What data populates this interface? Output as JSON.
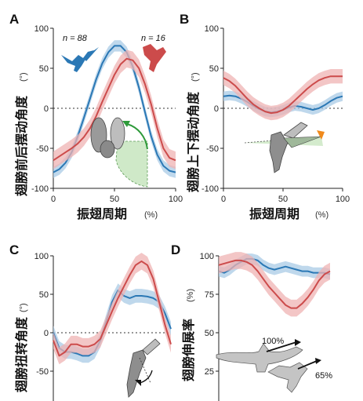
{
  "colors": {
    "blue": "#2b78b5",
    "blue_band": "#a9cbe6",
    "red": "#cc4b4b",
    "red_band": "#efb3b3"
  },
  "chart_data": [
    {
      "type": "line",
      "panel": "A",
      "ylabel": "翅膀前后摆动角度",
      "yunit": "(°)",
      "xlabel": "振翅周期",
      "xunit": "(%)",
      "xlim": [
        0,
        100
      ],
      "ylim": [
        -100,
        100
      ],
      "xticks": [
        0,
        50,
        100
      ],
      "yticks": [
        -100,
        -50,
        0,
        50,
        100
      ],
      "show_xlabel": true,
      "zero_line": true,
      "legend": [
        {
          "text": "n = 88",
          "color_key": "blue"
        },
        {
          "text": "n = 16",
          "color_key": "red"
        }
      ],
      "series": [
        {
          "color_key": "blue",
          "band": 7,
          "x": [
            0,
            5,
            10,
            15,
            20,
            25,
            30,
            35,
            40,
            45,
            50,
            55,
            60,
            65,
            70,
            75,
            80,
            85,
            90,
            95,
            100
          ],
          "y": [
            -80,
            -76,
            -68,
            -55,
            -35,
            -12,
            12,
            36,
            56,
            70,
            78,
            78,
            70,
            52,
            26,
            -5,
            -35,
            -58,
            -72,
            -78,
            -80
          ]
        },
        {
          "color_key": "red",
          "band": 11,
          "x": [
            0,
            5,
            10,
            15,
            20,
            25,
            30,
            35,
            40,
            45,
            50,
            55,
            60,
            65,
            70,
            75,
            80,
            85,
            90,
            95,
            100
          ],
          "y": [
            -65,
            -60,
            -55,
            -50,
            -44,
            -36,
            -25,
            -10,
            8,
            25,
            42,
            55,
            62,
            60,
            50,
            30,
            5,
            -25,
            -50,
            -62,
            -65
          ]
        }
      ]
    },
    {
      "type": "line",
      "panel": "B",
      "ylabel": "翅膀上下摆动角度",
      "yunit": "(°)",
      "xlabel": "振翅周期",
      "xunit": "(%)",
      "xlim": [
        0,
        100
      ],
      "ylim": [
        -100,
        100
      ],
      "xticks": [
        0,
        50,
        100
      ],
      "yticks": [
        -100,
        -50,
        0,
        50,
        100
      ],
      "show_xlabel": true,
      "zero_line": true,
      "series": [
        {
          "color_key": "blue",
          "band": 6,
          "x": [
            0,
            5,
            10,
            15,
            20,
            25,
            30,
            35,
            40,
            45,
            50,
            55,
            60,
            65,
            70,
            75,
            80,
            85,
            90,
            95,
            100
          ],
          "y": [
            15,
            16,
            15,
            12,
            8,
            3,
            -1,
            -4,
            -5,
            -4,
            -2,
            1,
            3,
            2,
            0,
            -2,
            0,
            4,
            9,
            13,
            15
          ]
        },
        {
          "color_key": "red",
          "band": 9,
          "x": [
            0,
            5,
            10,
            15,
            20,
            25,
            30,
            35,
            40,
            45,
            50,
            55,
            60,
            65,
            70,
            75,
            80,
            85,
            90,
            95,
            100
          ],
          "y": [
            38,
            34,
            28,
            20,
            12,
            5,
            0,
            -4,
            -6,
            -5,
            -2,
            3,
            10,
            17,
            24,
            30,
            35,
            38,
            40,
            40,
            40
          ]
        }
      ]
    },
    {
      "type": "line",
      "panel": "C",
      "ylabel": "翅膀扭转角度",
      "yunit": "(°)",
      "xlim": [
        0,
        100
      ],
      "ylim": [
        -100,
        100
      ],
      "yticks": [
        -50,
        0,
        50,
        100
      ],
      "show_xlabel": false,
      "zero_line": true,
      "series": [
        {
          "color_key": "blue",
          "band": 9,
          "x": [
            0,
            5,
            10,
            15,
            20,
            25,
            30,
            35,
            40,
            45,
            50,
            55,
            60,
            65,
            70,
            75,
            80,
            85,
            90,
            95,
            100
          ],
          "y": [
            0,
            -20,
            -25,
            -25,
            -27,
            -30,
            -30,
            -25,
            -10,
            15,
            40,
            55,
            48,
            45,
            48,
            48,
            47,
            45,
            40,
            25,
            5
          ]
        },
        {
          "color_key": "red",
          "band": 11,
          "x": [
            0,
            5,
            10,
            15,
            20,
            25,
            30,
            35,
            40,
            45,
            50,
            55,
            60,
            65,
            70,
            75,
            80,
            85,
            90,
            95,
            100
          ],
          "y": [
            -10,
            -30,
            -25,
            -15,
            -15,
            -18,
            -18,
            -15,
            -8,
            10,
            28,
            45,
            60,
            75,
            88,
            93,
            88,
            70,
            40,
            10,
            -15
          ]
        }
      ]
    },
    {
      "type": "line",
      "panel": "D",
      "ylabel": "翅膀伸展率",
      "yunit": "(%)",
      "xlim": [
        0,
        100
      ],
      "ylim": [
        0,
        100
      ],
      "yticks": [
        25,
        50,
        75,
        100
      ],
      "show_xlabel": false,
      "zero_line": false,
      "annotations": [
        "100%",
        "65%"
      ],
      "series": [
        {
          "color_key": "blue",
          "band": 3.5,
          "x": [
            0,
            5,
            10,
            15,
            20,
            25,
            30,
            35,
            40,
            45,
            50,
            55,
            60,
            65,
            70,
            75,
            80,
            85,
            90,
            95,
            100
          ],
          "y": [
            90,
            89,
            91,
            94,
            96,
            98,
            98,
            97,
            94,
            92,
            91,
            92,
            93,
            92,
            91,
            90,
            90,
            89,
            89,
            89,
            88
          ]
        },
        {
          "color_key": "red",
          "band": 5.5,
          "x": [
            0,
            5,
            10,
            15,
            20,
            25,
            30,
            35,
            40,
            45,
            50,
            55,
            60,
            65,
            70,
            75,
            80,
            85,
            90,
            95,
            100
          ],
          "y": [
            94,
            95,
            96,
            97,
            97,
            96,
            94,
            90,
            85,
            80,
            76,
            72,
            68,
            66,
            66,
            69,
            73,
            78,
            84,
            88,
            90
          ]
        }
      ]
    }
  ]
}
